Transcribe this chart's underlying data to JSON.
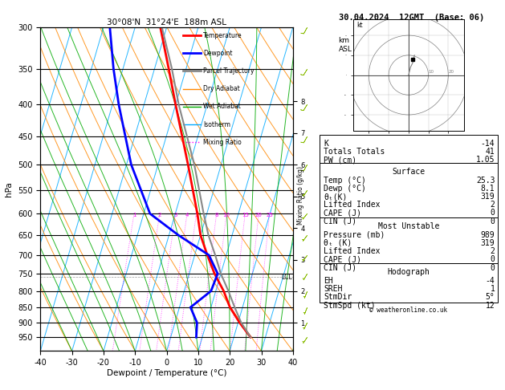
{
  "title_left": "30°08'N  31°24'E  188m ASL",
  "title_right": "30.04.2024  12GMT  (Base: 06)",
  "xlabel": "Dewpoint / Temperature (°C)",
  "indices": {
    "K": -14,
    "Totals_Totals": 41,
    "PW_cm": 1.05,
    "Surface_Temp": 25.3,
    "Surface_Dewp": 8.1,
    "Surface_thetae": 319,
    "Surface_LiftedIndex": 2,
    "Surface_CAPE": 0,
    "Surface_CIN": 0,
    "MU_Pressure": 989,
    "MU_thetae": 319,
    "MU_LiftedIndex": 2,
    "MU_CAPE": 0,
    "MU_CIN": 0,
    "Hodo_EH": -4,
    "Hodo_SREH": 1,
    "Hodo_StmDir": 5,
    "Hodo_StmSpd": 12
  },
  "temp_pressure": [
    950,
    900,
    850,
    800,
    750,
    700,
    650,
    600,
    500,
    400,
    350,
    300
  ],
  "temp_values": [
    25.3,
    20.5,
    16.0,
    12.5,
    8.0,
    4.0,
    0.0,
    -3.0,
    -10.5,
    -20.0,
    -25.5,
    -32.0
  ],
  "dewp_pressure": [
    950,
    900,
    850,
    800,
    750,
    700,
    650,
    600,
    500,
    400,
    350,
    300
  ],
  "dewp_values": [
    8.1,
    7.0,
    3.5,
    8.5,
    9.0,
    4.5,
    -7.0,
    -18.0,
    -28.5,
    -38.0,
    -43.0,
    -48.0
  ],
  "parcel_pressure": [
    950,
    900,
    850,
    800,
    750,
    700,
    650,
    600,
    500,
    400,
    350,
    300
  ],
  "parcel_values": [
    25.3,
    21.0,
    17.5,
    14.0,
    10.0,
    6.5,
    2.5,
    -1.0,
    -8.5,
    -19.0,
    -24.5,
    -31.5
  ],
  "pressure_levels": [
    300,
    350,
    400,
    450,
    500,
    550,
    600,
    650,
    700,
    750,
    800,
    850,
    900,
    950
  ],
  "lcl_pressure": 760,
  "mixing_ratios": [
    1,
    2,
    3,
    4,
    5,
    8,
    10,
    15,
    20,
    25
  ],
  "km_ticks": [
    1,
    2,
    3,
    4,
    5,
    6,
    7,
    8
  ],
  "temp_color": "#ff0000",
  "dewp_color": "#0000ff",
  "parcel_color": "#888888",
  "dry_adiabat_color": "#ff8800",
  "wet_adiabat_color": "#00aa00",
  "isotherm_color": "#00aaff",
  "mixing_color": "#ff00ff",
  "barb_color": "#88bb00",
  "legend_labels": [
    "Temperature",
    "Dewpoint",
    "Parcel Trajectory",
    "Dry Adiabat",
    "Wet Adiabat",
    "Isotherm",
    "Mixing Ratio"
  ],
  "legend_colors": [
    "#ff0000",
    "#0000ff",
    "#888888",
    "#ff8800",
    "#00aa00",
    "#00aaff",
    "#ff00ff"
  ],
  "legend_styles": [
    "solid",
    "solid",
    "solid",
    "solid",
    "solid",
    "solid",
    "dotted"
  ],
  "copyright": "© weatheronline.co.uk",
  "T_min": -40,
  "T_max": 40,
  "P_min": 300,
  "P_max": 1000,
  "skew_amount": 30
}
